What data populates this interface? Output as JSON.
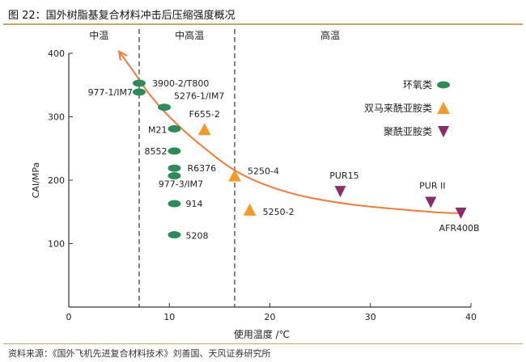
{
  "header": {
    "title": "图 22：国外树脂基复合材料冲击后压缩强度概况"
  },
  "footer": {
    "source": "资料来源：《国外飞机先进复合材料技术》刘善国、天风证券研究所"
  },
  "colors": {
    "epoxy": "#2e8b57",
    "bmi": "#f39a2b",
    "polyimide": "#8b2c6a",
    "curve": "#f07a3c",
    "rule": "#c9a46c"
  },
  "chart_data": {
    "type": "scatter",
    "xlabel": "使用温度 /℃",
    "ylabel": "CAI/MPa",
    "xlim": [
      0,
      40
    ],
    "ylim": [
      0,
      400
    ],
    "x_ticks": [
      "0",
      "10",
      "20",
      "30",
      "40"
    ],
    "y_ticks": [
      "100",
      "200",
      "300",
      "400"
    ],
    "regions": [
      {
        "label": "中温",
        "x": 3
      },
      {
        "label": "中高温",
        "x": 12
      },
      {
        "label": "高温",
        "x": 26
      }
    ],
    "region_dividers": [
      7,
      16.5
    ],
    "legend": {
      "position": "right",
      "entries": [
        {
          "name": "环氧类",
          "marker": "ellipse",
          "color": "#2e8b57"
        },
        {
          "name": "双马来酰亚胺类",
          "marker": "triangle-up",
          "color": "#f39a2b"
        },
        {
          "name": "聚酰亚胺类",
          "marker": "triangle-down",
          "color": "#8b2c6a"
        }
      ]
    },
    "series": [
      {
        "name": "环氧类",
        "marker": "ellipse",
        "color": "#2e8b57",
        "points": [
          {
            "label": "3900-2/T800",
            "x": 7,
            "y": 353
          },
          {
            "label": "977-1/IM7",
            "x": 7,
            "y": 339
          },
          {
            "label": "5276-1/IM7",
            "x": 9.5,
            "y": 315
          },
          {
            "label": "M21",
            "x": 10.5,
            "y": 281
          },
          {
            "label": "8552",
            "x": 10.5,
            "y": 246
          },
          {
            "label": "R6376",
            "x": 10.5,
            "y": 219
          },
          {
            "label": "977-3/IM7",
            "x": 10.5,
            "y": 207
          },
          {
            "label": "914",
            "x": 10.5,
            "y": 163
          },
          {
            "label": "5208",
            "x": 10.5,
            "y": 114
          }
        ]
      },
      {
        "name": "双马来酰亚胺类",
        "marker": "triangle-up",
        "color": "#f39a2b",
        "points": [
          {
            "label": "F655-2",
            "x": 13.5,
            "y": 280
          },
          {
            "label": "5250-4",
            "x": 16.5,
            "y": 207
          },
          {
            "label": "5250-2",
            "x": 18,
            "y": 153
          }
        ]
      },
      {
        "name": "聚酰亚胺类",
        "marker": "triangle-down",
        "color": "#8b2c6a",
        "points": [
          {
            "label": "PUR15",
            "x": 27,
            "y": 182
          },
          {
            "label": "PUR II",
            "x": 36,
            "y": 165
          },
          {
            "label": "AFR400B",
            "x": 39,
            "y": 148
          }
        ]
      }
    ],
    "trend": [
      [
        39,
        148
      ],
      [
        36,
        150
      ],
      [
        28,
        162
      ],
      [
        22,
        180
      ],
      [
        17,
        211
      ],
      [
        13,
        257
      ],
      [
        10,
        300
      ],
      [
        8,
        336
      ],
      [
        6.5,
        370
      ],
      [
        5,
        403
      ]
    ]
  }
}
